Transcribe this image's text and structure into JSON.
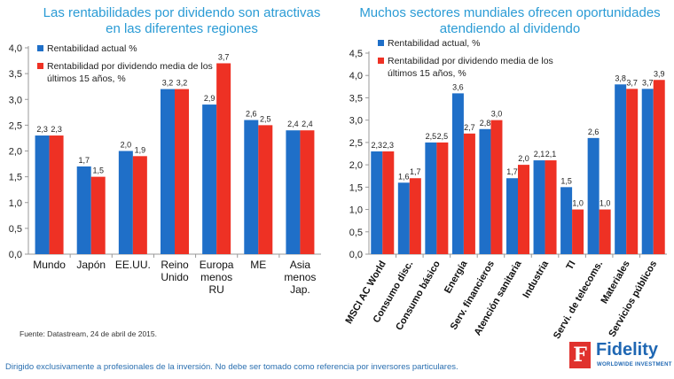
{
  "colors": {
    "actual": "#1f6fc8",
    "avg": "#ee3124",
    "title": "#2a9bd5",
    "axis": "#999999"
  },
  "footer": {
    "source": "Fuente: Datastream, 24 de abril de 2015.",
    "disclaimer": "Dirigido exclusivamente a profesionales de la inversión. No debe ser tomado como referencia por inversores particulares.",
    "logo_name": "Fidelity",
    "logo_sub": "WORLDWIDE INVESTMENT",
    "logo_mark": "F"
  },
  "chart_data": [
    {
      "type": "bar",
      "title": "Las rentabilidades por dividendo son atractivas en las diferentes regiones",
      "categories": [
        "Mundo",
        "Japón",
        "EE.UU.",
        "Reino Unido",
        "Europa menos RU",
        "ME",
        "Asia menos Jap."
      ],
      "series": [
        {
          "name": "Rentabilidad actual %",
          "values": [
            2.3,
            1.7,
            2.0,
            3.2,
            2.9,
            2.6,
            2.4
          ],
          "labels": [
            "2,3",
            "1,7",
            "2,0",
            "3,2",
            "2,9",
            "2,6",
            "2,4"
          ]
        },
        {
          "name": "Rentabilidad por dividendo media de los últimos 15 años, %",
          "values": [
            2.3,
            1.5,
            1.9,
            3.2,
            3.7,
            2.5,
            2.4
          ],
          "labels": [
            "2,3",
            "1,5",
            "1,9",
            "3,2",
            "3,7",
            "2,5",
            "2,4"
          ]
        }
      ],
      "ylim": [
        0,
        4.0
      ],
      "yticks": [
        "0,0",
        "0,5",
        "1,0",
        "1,5",
        "2,0",
        "2,5",
        "3,0",
        "3,5",
        "4,0"
      ],
      "xlabel": "",
      "ylabel": "",
      "legend": "top-left"
    },
    {
      "type": "bar",
      "title": "Muchos sectores mundiales ofrecen oportunidades atendiendo al dividendo",
      "categories": [
        "MSCI AC World",
        "Consumo disc.",
        "Consumo básico",
        "Energía",
        "Serv. financieros",
        "Atención sanitaria",
        "Industria",
        "TI",
        "Servi. de telecoms.",
        "Materiales",
        "Servicios públicos"
      ],
      "series": [
        {
          "name": "Rentabilidad actual, %",
          "values": [
            2.3,
            1.6,
            2.5,
            3.6,
            2.8,
            1.7,
            2.1,
            1.5,
            2.6,
            3.8,
            3.7
          ],
          "labels": [
            "2,3",
            "1,6",
            "2,5",
            "3,6",
            "2,8",
            "1,7",
            "2,1",
            "1,5",
            "2,6",
            "3,8",
            "3,7"
          ]
        },
        {
          "name": "Rentabilidad por dividendo media de los últimos 15 años, %",
          "values": [
            2.3,
            1.7,
            2.5,
            2.7,
            3.0,
            2.0,
            2.1,
            1.0,
            1.0,
            3.7,
            3.9
          ],
          "labels": [
            "2,3",
            "1,7",
            "2,5",
            "2,7",
            "3,0",
            "2,0",
            "2,1",
            "1,0",
            "1,0",
            "3,7",
            "3,9"
          ]
        }
      ],
      "ylim": [
        0,
        4.5
      ],
      "yticks": [
        "0,0",
        "0,5",
        "1,0",
        "1,5",
        "2,0",
        "2,5",
        "3,0",
        "3,5",
        "4,0",
        "4,5"
      ],
      "xlabel": "",
      "ylabel": "",
      "legend": "top-left"
    }
  ]
}
